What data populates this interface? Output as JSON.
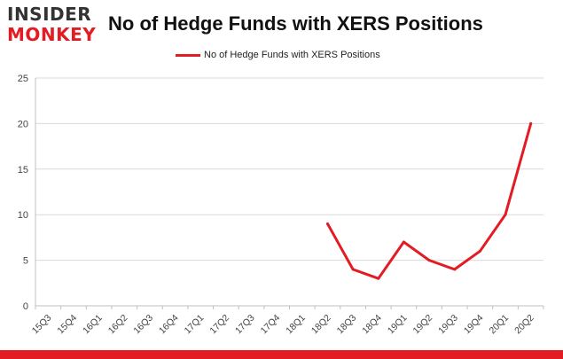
{
  "header": {
    "logo_line1": "INSIDER",
    "logo_line2": "MONKEY",
    "title": "No of Hedge Funds with XERS Positions"
  },
  "colors": {
    "series": "#e31b23",
    "grid": "#d9d9d9",
    "axis_text": "#444444",
    "logo_dark": "#333333",
    "logo_red": "#e31b23"
  },
  "chart_data": {
    "type": "line",
    "title": "No of Hedge Funds with XERS Positions",
    "xlabel": "",
    "ylabel": "",
    "categories": [
      "15Q3",
      "15Q4",
      "16Q1",
      "16Q2",
      "16Q3",
      "16Q4",
      "17Q1",
      "17Q2",
      "17Q3",
      "17Q4",
      "18Q1",
      "18Q2",
      "18Q3",
      "18Q4",
      "19Q1",
      "19Q2",
      "19Q3",
      "19Q4",
      "20Q1",
      "20Q2"
    ],
    "series": [
      {
        "name": "No of Hedge Funds with XERS Positions",
        "values": [
          null,
          null,
          null,
          null,
          null,
          null,
          null,
          null,
          null,
          null,
          null,
          9,
          4,
          3,
          7,
          5,
          4,
          6,
          10,
          20
        ]
      }
    ],
    "ylim": [
      0,
      25
    ],
    "yticks": [
      0,
      5,
      10,
      15,
      20,
      25
    ],
    "grid": true,
    "legend_position": "top-center"
  }
}
